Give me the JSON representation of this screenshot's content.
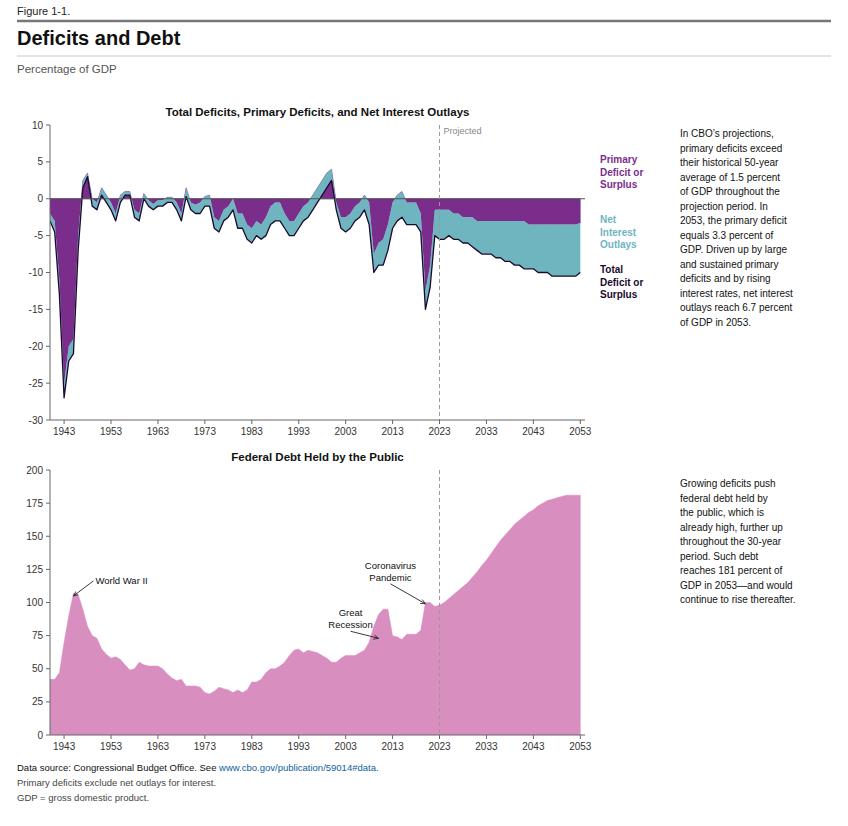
{
  "fig_label": "Figure 1-1.",
  "title": "Deficits and Debt",
  "subtitle": "Percentage of GDP",
  "source": "Data source: Congressional Budget Office. See ",
  "source_url": "www.cbo.gov/publication/59014#data.",
  "notes": [
    "Primary deficits exclude net outlays for interest.",
    "GDP = gross domestic product."
  ],
  "chart_data": [
    {
      "type": "area",
      "title": "Total Deficits, Primary Deficits, and Net Interest Outlays",
      "note": "In CBO’s projections,\nprimary deficits exceed\ntheir historical 50-year\naverage of 1.5 percent\nof GDP throughout the\nprojection period. In\n2053, the primary deficit\nequals 3.3 percent of\nGDP. Driven up by large\nand sustained primary\ndeficits and by rising\ninterest rates, net interest\noutlays reach 6.7 percent\nof GDP in 2053.",
      "legend": "right",
      "grid": false,
      "xlim": [
        1940,
        2054
      ],
      "xticks": [
        1943,
        1953,
        1963,
        1973,
        1983,
        1993,
        2003,
        2013,
        2023,
        2033,
        2043,
        2053
      ],
      "ylim": [
        -30,
        10
      ],
      "yticks": [
        -30,
        -25,
        -20,
        -15,
        -10,
        -5,
        0,
        5,
        10
      ],
      "hlines": [
        0
      ],
      "vlines": [
        2023
      ],
      "annotations": [
        {
          "text": "Projected",
          "x": 2023
        }
      ],
      "x": [
        1940,
        1941,
        1942,
        1943,
        1944,
        1945,
        1946,
        1947,
        1948,
        1949,
        1950,
        1951,
        1952,
        1953,
        1954,
        1955,
        1956,
        1957,
        1958,
        1959,
        1960,
        1961,
        1962,
        1963,
        1964,
        1965,
        1966,
        1967,
        1968,
        1969,
        1970,
        1971,
        1972,
        1973,
        1974,
        1975,
        1976,
        1977,
        1978,
        1979,
        1980,
        1981,
        1982,
        1983,
        1984,
        1985,
        1986,
        1987,
        1988,
        1989,
        1990,
        1991,
        1992,
        1993,
        1994,
        1995,
        1996,
        1997,
        1998,
        1999,
        2000,
        2001,
        2002,
        2003,
        2004,
        2005,
        2006,
        2007,
        2008,
        2009,
        2010,
        2011,
        2012,
        2013,
        2014,
        2015,
        2016,
        2017,
        2018,
        2019,
        2020,
        2021,
        2022,
        2023,
        2024,
        2025,
        2026,
        2027,
        2028,
        2029,
        2030,
        2031,
        2032,
        2033,
        2034,
        2035,
        2036,
        2037,
        2038,
        2039,
        2040,
        2041,
        2042,
        2043,
        2044,
        2045,
        2046,
        2047,
        2048,
        2049,
        2050,
        2051,
        2052,
        2053
      ],
      "series": [
        {
          "name": "Primary\nDeficit or\nSurplus",
          "type": "area",
          "color": "#7B2D8B",
          "values": [
            -2.0,
            -3.0,
            -11.0,
            -25.0,
            -20.0,
            -19.0,
            -5.0,
            2.5,
            3.5,
            0.0,
            -0.5,
            1.5,
            0.5,
            -0.5,
            -2.0,
            0.5,
            1.0,
            1.0,
            -1.5,
            -2.0,
            0.7,
            -0.2,
            -0.7,
            -0.2,
            -0.2,
            0.2,
            0.2,
            -0.5,
            -2.0,
            1.5,
            -0.5,
            -0.8,
            -0.5,
            0.3,
            0.5,
            -2.5,
            -3.0,
            -1.5,
            -1.0,
            0.0,
            -2.0,
            -2.0,
            -3.5,
            -4.0,
            -3.0,
            -3.5,
            -2.5,
            -1.0,
            -0.5,
            -0.5,
            -2.0,
            -3.0,
            -3.0,
            -2.0,
            -1.0,
            -0.5,
            0.5,
            1.5,
            2.5,
            3.5,
            4.0,
            -0.5,
            -2.5,
            -2.5,
            -2.0,
            -1.0,
            -0.5,
            0.5,
            -0.5,
            -7.5,
            -6.0,
            -5.5,
            -3.5,
            -0.5,
            0.5,
            1.0,
            -0.5,
            -0.5,
            -0.5,
            -2.0,
            -12.5,
            -9.0,
            -1.5,
            -1.5,
            -1.5,
            -1.5,
            -2.0,
            -2.0,
            -2.5,
            -2.5,
            -2.5,
            -3.0,
            -3.0,
            -3.0,
            -3.0,
            -3.0,
            -3.0,
            -3.0,
            -3.0,
            -3.0,
            -3.0,
            -3.0,
            -3.5,
            -3.5,
            -3.5,
            -3.5,
            -3.5,
            -3.5,
            -3.5,
            -3.5,
            -3.5,
            -3.5,
            -3.5,
            -3.3
          ]
        },
        {
          "name": "Net\nInterest\nOutlays",
          "type": "band",
          "color": "#6EB5C0"
        },
        {
          "name": "Total\nDeficit or\nSurplus",
          "type": "line",
          "color": "#1A0A2E",
          "values": [
            -3.0,
            -4.5,
            -13.0,
            -27.0,
            -22.0,
            -21.0,
            -7.0,
            1.5,
            3.0,
            -1.0,
            -1.5,
            0.5,
            -0.5,
            -1.5,
            -3.0,
            -0.5,
            0.5,
            0.5,
            -2.5,
            -3.0,
            0.0,
            -1.0,
            -1.5,
            -1.0,
            -1.0,
            -0.5,
            -0.5,
            -1.5,
            -3.0,
            0.3,
            -1.5,
            -2.0,
            -2.0,
            -1.0,
            -1.0,
            -4.0,
            -4.5,
            -3.0,
            -2.5,
            -1.5,
            -4.0,
            -4.0,
            -5.5,
            -6.0,
            -5.0,
            -5.5,
            -5.0,
            -3.5,
            -3.0,
            -3.0,
            -4.0,
            -5.0,
            -5.0,
            -4.0,
            -3.0,
            -2.5,
            -1.5,
            -0.5,
            0.5,
            1.5,
            2.5,
            -1.5,
            -4.0,
            -4.5,
            -4.0,
            -3.0,
            -2.5,
            -1.5,
            -3.5,
            -10.0,
            -9.0,
            -9.0,
            -7.0,
            -4.0,
            -3.0,
            -2.5,
            -3.5,
            -3.5,
            -3.5,
            -4.5,
            -15.0,
            -12.0,
            -5.0,
            -5.5,
            -5.5,
            -5.0,
            -5.5,
            -5.5,
            -6.0,
            -6.0,
            -6.5,
            -7.0,
            -7.5,
            -7.5,
            -7.5,
            -8.0,
            -8.0,
            -8.5,
            -8.5,
            -9.0,
            -9.0,
            -9.5,
            -9.5,
            -9.5,
            -10.0,
            -10.0,
            -10.0,
            -10.5,
            -10.5,
            -10.5,
            -10.5,
            -10.5,
            -10.5,
            -10.0
          ]
        }
      ]
    },
    {
      "type": "area",
      "title": "Federal Debt Held by the Public",
      "note": "Growing deficits push\nfederal debt held by\nthe public, which is\nalready high, further up\nthroughout the 30-year\nperiod. Such debt\nreaches 181 percent of\nGDP in 2053—and would\ncontinue to rise thereafter.",
      "grid": false,
      "xlim": [
        1940,
        2054
      ],
      "xticks": [
        1943,
        1953,
        1963,
        1973,
        1983,
        1993,
        2003,
        2013,
        2023,
        2033,
        2043,
        2053
      ],
      "ylim": [
        0,
        200
      ],
      "yticks": [
        0,
        25,
        50,
        75,
        100,
        125,
        150,
        175,
        200
      ],
      "vlines": [
        2023
      ],
      "annotations": [
        {
          "text": "World War II",
          "x": 1945,
          "y": 105
        },
        {
          "text": "Great\nRecession",
          "x": 2010,
          "y": 73
        },
        {
          "text": "Coronavirus\nPandemic",
          "x": 2020,
          "y": 99
        }
      ],
      "x": [
        1940,
        1941,
        1942,
        1943,
        1944,
        1945,
        1946,
        1947,
        1948,
        1949,
        1950,
        1951,
        1952,
        1953,
        1954,
        1955,
        1956,
        1957,
        1958,
        1959,
        1960,
        1961,
        1962,
        1963,
        1964,
        1965,
        1966,
        1967,
        1968,
        1969,
        1970,
        1971,
        1972,
        1973,
        1974,
        1975,
        1976,
        1977,
        1978,
        1979,
        1980,
        1981,
        1982,
        1983,
        1984,
        1985,
        1986,
        1987,
        1988,
        1989,
        1990,
        1991,
        1992,
        1993,
        1994,
        1995,
        1996,
        1997,
        1998,
        1999,
        2000,
        2001,
        2002,
        2003,
        2004,
        2005,
        2006,
        2007,
        2008,
        2009,
        2010,
        2011,
        2012,
        2013,
        2014,
        2015,
        2016,
        2017,
        2018,
        2019,
        2020,
        2021,
        2022,
        2023,
        2024,
        2025,
        2026,
        2027,
        2028,
        2029,
        2030,
        2031,
        2032,
        2033,
        2034,
        2035,
        2036,
        2037,
        2038,
        2039,
        2040,
        2041,
        2042,
        2043,
        2044,
        2045,
        2046,
        2047,
        2048,
        2049,
        2050,
        2051,
        2052,
        2053
      ],
      "series": [
        {
          "type": "area",
          "color": "#D98EC0",
          "values": [
            42,
            42,
            47,
            70,
            90,
            107,
            106,
            95,
            82,
            75,
            73,
            65,
            61,
            58,
            59,
            57,
            53,
            49,
            50,
            55,
            53,
            52,
            52,
            52,
            50,
            46,
            43,
            41,
            42,
            37,
            37,
            37,
            36,
            32,
            31,
            33,
            36,
            35,
            34,
            32,
            34,
            32,
            34,
            40,
            40,
            42,
            47,
            50,
            50,
            52,
            55,
            60,
            64,
            65,
            62,
            64,
            63,
            62,
            60,
            58,
            55,
            55,
            58,
            60,
            60,
            60,
            62,
            64,
            70,
            82,
            91,
            95,
            95,
            75,
            74,
            72,
            76,
            76,
            76,
            79,
            100,
            100,
            97,
            98,
            100,
            103,
            106,
            109,
            112,
            115,
            119,
            123,
            128,
            132,
            137,
            142,
            147,
            151,
            155,
            159,
            162,
            165,
            168,
            170,
            173,
            175,
            177,
            178,
            179,
            180,
            181,
            181,
            181,
            181
          ]
        }
      ]
    }
  ]
}
